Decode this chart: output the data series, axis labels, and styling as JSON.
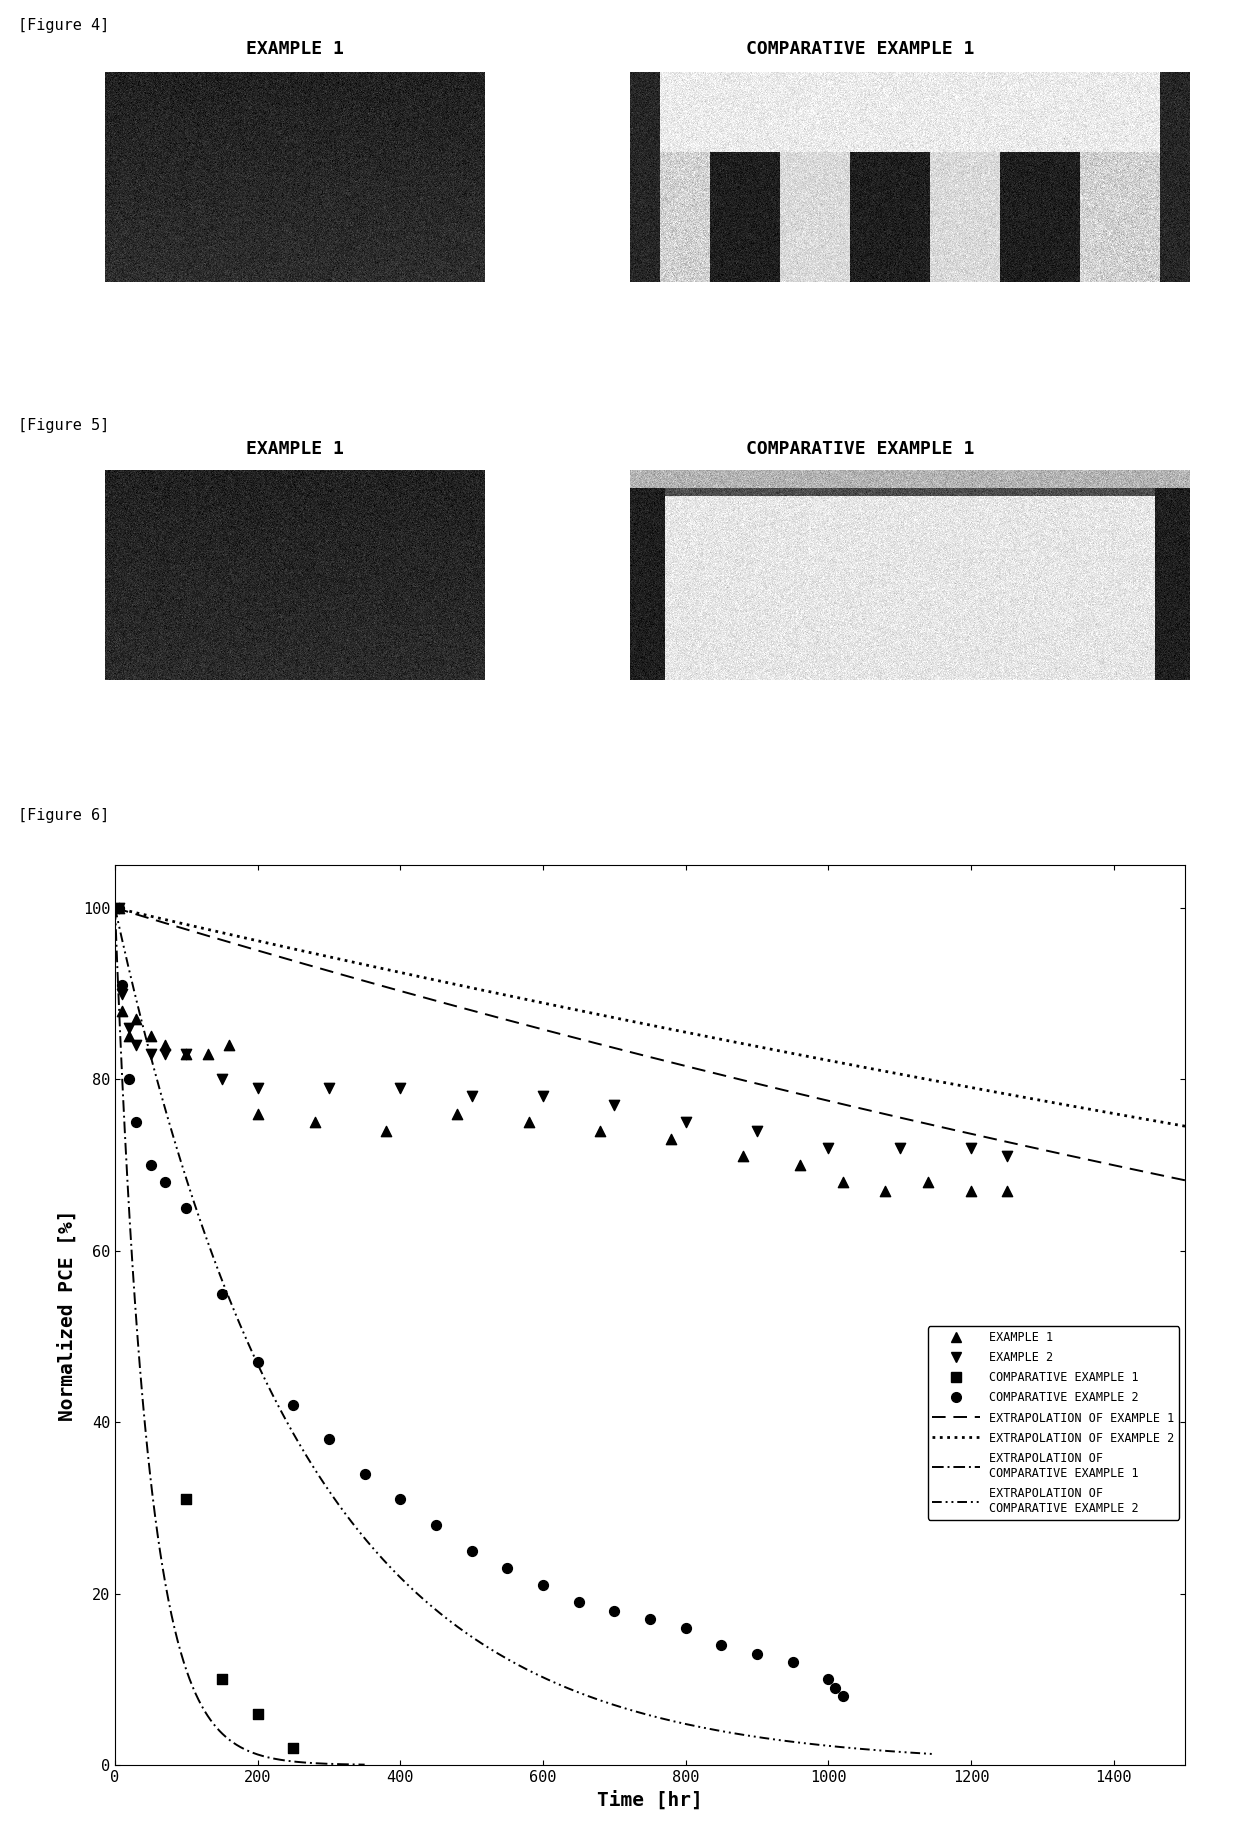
{
  "fig4_label": "[Figure 4]",
  "fig5_label": "[Figure 5]",
  "fig6_label": "[Figure 6]",
  "fig4_example1_title": "EXAMPLE 1",
  "fig4_comp1_title": "COMPARATIVE EXAMPLE 1",
  "fig5_example1_title": "EXAMPLE 1",
  "fig5_comp1_title": "COMPARATIVE EXAMPLE 1",
  "xlabel": "Time [hr]",
  "ylabel": "Normalized PCE [%]",
  "ylim": [
    0,
    105
  ],
  "xlim": [
    0,
    1500
  ],
  "xticks": [
    0,
    200,
    400,
    600,
    800,
    1000,
    1200,
    1400
  ],
  "yticks": [
    0,
    20,
    40,
    60,
    80,
    100
  ],
  "example1_scatter_x": [
    5,
    10,
    20,
    30,
    50,
    70,
    100,
    130,
    160,
    200,
    280,
    380,
    480,
    580,
    680,
    780,
    880,
    960,
    1020,
    1080,
    1140,
    1200,
    1250
  ],
  "example1_scatter_y": [
    100,
    88,
    85,
    87,
    85,
    84,
    83,
    83,
    84,
    76,
    75,
    74,
    76,
    75,
    74,
    73,
    71,
    70,
    68,
    67,
    68,
    67,
    67
  ],
  "example2_scatter_x": [
    5,
    10,
    20,
    30,
    50,
    70,
    100,
    150,
    200,
    300,
    400,
    500,
    600,
    700,
    800,
    900,
    1000,
    1100,
    1200,
    1250
  ],
  "example2_scatter_y": [
    100,
    90,
    86,
    84,
    83,
    83,
    83,
    80,
    79,
    79,
    79,
    78,
    78,
    77,
    75,
    74,
    72,
    72,
    72,
    71
  ],
  "comp1_scatter_x": [
    100,
    150,
    200,
    250
  ],
  "comp1_scatter_y": [
    31,
    10,
    6,
    2
  ],
  "comp2_scatter_x": [
    5,
    10,
    20,
    30,
    50,
    70,
    100,
    150,
    200,
    250,
    300,
    350,
    400,
    450,
    500,
    550,
    600,
    650,
    700,
    750,
    800,
    850,
    900,
    950,
    1000,
    1010,
    1020
  ],
  "comp2_scatter_y": [
    100,
    91,
    80,
    75,
    70,
    68,
    65,
    55,
    47,
    42,
    38,
    34,
    31,
    28,
    25,
    23,
    21,
    19,
    18,
    17,
    16,
    14,
    13,
    12,
    10,
    9,
    8
  ],
  "background_color": "#ffffff",
  "text_color": "#000000",
  "figure_label_fontsize": 11,
  "panel_title_fontsize": 13,
  "axis_label_fontsize": 14,
  "tick_fontsize": 11,
  "legend_fontsize": 8.5
}
